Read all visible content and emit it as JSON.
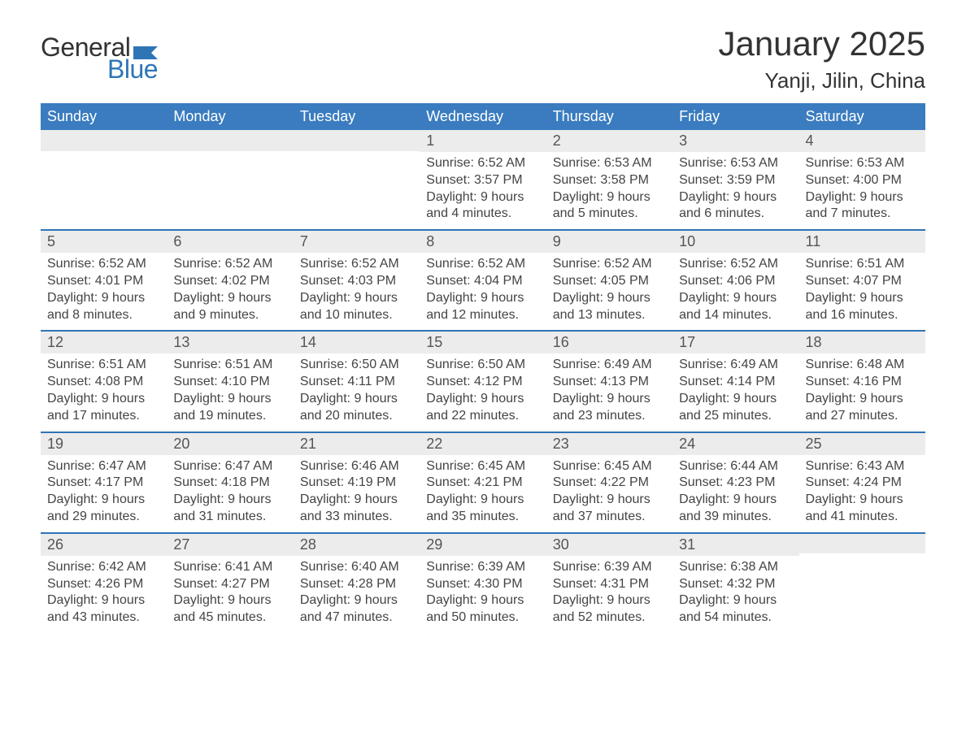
{
  "logo": {
    "general": "General",
    "blue": "Blue"
  },
  "title": "January 2025",
  "location": "Yanji, Jilin, China",
  "colors": {
    "header_bg": "#3a7cbf",
    "header_text": "#ffffff",
    "daynum_bg": "#ececec",
    "week_border": "#2e75b6",
    "body_text": "#444444",
    "title_text": "#333333",
    "logo_blue": "#2e75b6",
    "background": "#ffffff"
  },
  "weekdays": [
    "Sunday",
    "Monday",
    "Tuesday",
    "Wednesday",
    "Thursday",
    "Friday",
    "Saturday"
  ],
  "weeks": [
    [
      null,
      null,
      null,
      {
        "n": "1",
        "sr": "Sunrise: 6:52 AM",
        "ss": "Sunset: 3:57 PM",
        "d1": "Daylight: 9 hours",
        "d2": "and 4 minutes."
      },
      {
        "n": "2",
        "sr": "Sunrise: 6:53 AM",
        "ss": "Sunset: 3:58 PM",
        "d1": "Daylight: 9 hours",
        "d2": "and 5 minutes."
      },
      {
        "n": "3",
        "sr": "Sunrise: 6:53 AM",
        "ss": "Sunset: 3:59 PM",
        "d1": "Daylight: 9 hours",
        "d2": "and 6 minutes."
      },
      {
        "n": "4",
        "sr": "Sunrise: 6:53 AM",
        "ss": "Sunset: 4:00 PM",
        "d1": "Daylight: 9 hours",
        "d2": "and 7 minutes."
      }
    ],
    [
      {
        "n": "5",
        "sr": "Sunrise: 6:52 AM",
        "ss": "Sunset: 4:01 PM",
        "d1": "Daylight: 9 hours",
        "d2": "and 8 minutes."
      },
      {
        "n": "6",
        "sr": "Sunrise: 6:52 AM",
        "ss": "Sunset: 4:02 PM",
        "d1": "Daylight: 9 hours",
        "d2": "and 9 minutes."
      },
      {
        "n": "7",
        "sr": "Sunrise: 6:52 AM",
        "ss": "Sunset: 4:03 PM",
        "d1": "Daylight: 9 hours",
        "d2": "and 10 minutes."
      },
      {
        "n": "8",
        "sr": "Sunrise: 6:52 AM",
        "ss": "Sunset: 4:04 PM",
        "d1": "Daylight: 9 hours",
        "d2": "and 12 minutes."
      },
      {
        "n": "9",
        "sr": "Sunrise: 6:52 AM",
        "ss": "Sunset: 4:05 PM",
        "d1": "Daylight: 9 hours",
        "d2": "and 13 minutes."
      },
      {
        "n": "10",
        "sr": "Sunrise: 6:52 AM",
        "ss": "Sunset: 4:06 PM",
        "d1": "Daylight: 9 hours",
        "d2": "and 14 minutes."
      },
      {
        "n": "11",
        "sr": "Sunrise: 6:51 AM",
        "ss": "Sunset: 4:07 PM",
        "d1": "Daylight: 9 hours",
        "d2": "and 16 minutes."
      }
    ],
    [
      {
        "n": "12",
        "sr": "Sunrise: 6:51 AM",
        "ss": "Sunset: 4:08 PM",
        "d1": "Daylight: 9 hours",
        "d2": "and 17 minutes."
      },
      {
        "n": "13",
        "sr": "Sunrise: 6:51 AM",
        "ss": "Sunset: 4:10 PM",
        "d1": "Daylight: 9 hours",
        "d2": "and 19 minutes."
      },
      {
        "n": "14",
        "sr": "Sunrise: 6:50 AM",
        "ss": "Sunset: 4:11 PM",
        "d1": "Daylight: 9 hours",
        "d2": "and 20 minutes."
      },
      {
        "n": "15",
        "sr": "Sunrise: 6:50 AM",
        "ss": "Sunset: 4:12 PM",
        "d1": "Daylight: 9 hours",
        "d2": "and 22 minutes."
      },
      {
        "n": "16",
        "sr": "Sunrise: 6:49 AM",
        "ss": "Sunset: 4:13 PM",
        "d1": "Daylight: 9 hours",
        "d2": "and 23 minutes."
      },
      {
        "n": "17",
        "sr": "Sunrise: 6:49 AM",
        "ss": "Sunset: 4:14 PM",
        "d1": "Daylight: 9 hours",
        "d2": "and 25 minutes."
      },
      {
        "n": "18",
        "sr": "Sunrise: 6:48 AM",
        "ss": "Sunset: 4:16 PM",
        "d1": "Daylight: 9 hours",
        "d2": "and 27 minutes."
      }
    ],
    [
      {
        "n": "19",
        "sr": "Sunrise: 6:47 AM",
        "ss": "Sunset: 4:17 PM",
        "d1": "Daylight: 9 hours",
        "d2": "and 29 minutes."
      },
      {
        "n": "20",
        "sr": "Sunrise: 6:47 AM",
        "ss": "Sunset: 4:18 PM",
        "d1": "Daylight: 9 hours",
        "d2": "and 31 minutes."
      },
      {
        "n": "21",
        "sr": "Sunrise: 6:46 AM",
        "ss": "Sunset: 4:19 PM",
        "d1": "Daylight: 9 hours",
        "d2": "and 33 minutes."
      },
      {
        "n": "22",
        "sr": "Sunrise: 6:45 AM",
        "ss": "Sunset: 4:21 PM",
        "d1": "Daylight: 9 hours",
        "d2": "and 35 minutes."
      },
      {
        "n": "23",
        "sr": "Sunrise: 6:45 AM",
        "ss": "Sunset: 4:22 PM",
        "d1": "Daylight: 9 hours",
        "d2": "and 37 minutes."
      },
      {
        "n": "24",
        "sr": "Sunrise: 6:44 AM",
        "ss": "Sunset: 4:23 PM",
        "d1": "Daylight: 9 hours",
        "d2": "and 39 minutes."
      },
      {
        "n": "25",
        "sr": "Sunrise: 6:43 AM",
        "ss": "Sunset: 4:24 PM",
        "d1": "Daylight: 9 hours",
        "d2": "and 41 minutes."
      }
    ],
    [
      {
        "n": "26",
        "sr": "Sunrise: 6:42 AM",
        "ss": "Sunset: 4:26 PM",
        "d1": "Daylight: 9 hours",
        "d2": "and 43 minutes."
      },
      {
        "n": "27",
        "sr": "Sunrise: 6:41 AM",
        "ss": "Sunset: 4:27 PM",
        "d1": "Daylight: 9 hours",
        "d2": "and 45 minutes."
      },
      {
        "n": "28",
        "sr": "Sunrise: 6:40 AM",
        "ss": "Sunset: 4:28 PM",
        "d1": "Daylight: 9 hours",
        "d2": "and 47 minutes."
      },
      {
        "n": "29",
        "sr": "Sunrise: 6:39 AM",
        "ss": "Sunset: 4:30 PM",
        "d1": "Daylight: 9 hours",
        "d2": "and 50 minutes."
      },
      {
        "n": "30",
        "sr": "Sunrise: 6:39 AM",
        "ss": "Sunset: 4:31 PM",
        "d1": "Daylight: 9 hours",
        "d2": "and 52 minutes."
      },
      {
        "n": "31",
        "sr": "Sunrise: 6:38 AM",
        "ss": "Sunset: 4:32 PM",
        "d1": "Daylight: 9 hours",
        "d2": "and 54 minutes."
      },
      null
    ]
  ]
}
